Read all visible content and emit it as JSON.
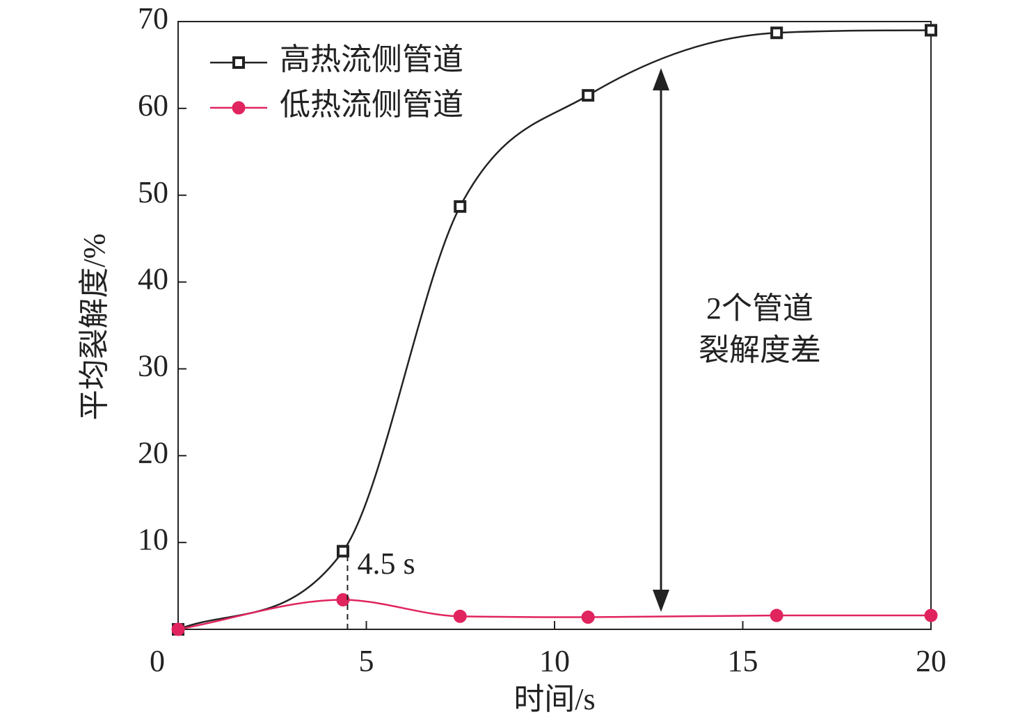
{
  "chart_data": {
    "type": "line",
    "x_label": "时间/s",
    "y_label": "平均裂解度/%",
    "xlim": [
      0,
      20
    ],
    "xticks": [
      0,
      5,
      10,
      15,
      20
    ],
    "ylim": [
      0,
      70
    ],
    "yticks": [
      10,
      20,
      30,
      40,
      50,
      60,
      70
    ],
    "series": [
      {
        "name": "高热流侧管道",
        "color": "#222222",
        "marker": "square",
        "x": [
          0,
          4.38,
          7.49,
          10.89,
          15.9,
          20
        ],
        "values": [
          0,
          9.0,
          48.7,
          61.5,
          68.7,
          69.0
        ]
      },
      {
        "name": "低热流侧管道",
        "color": "#e0245e",
        "marker": "circle",
        "x": [
          0,
          4.38,
          7.49,
          10.89,
          15.9,
          20
        ],
        "values": [
          0,
          3.4,
          1.5,
          1.4,
          1.6,
          1.6
        ]
      }
    ],
    "vline": {
      "value": 4.5,
      "label": "4.5 s"
    },
    "arrow_text": [
      "2个管道",
      "裂解度差"
    ],
    "legend": "upper left"
  }
}
